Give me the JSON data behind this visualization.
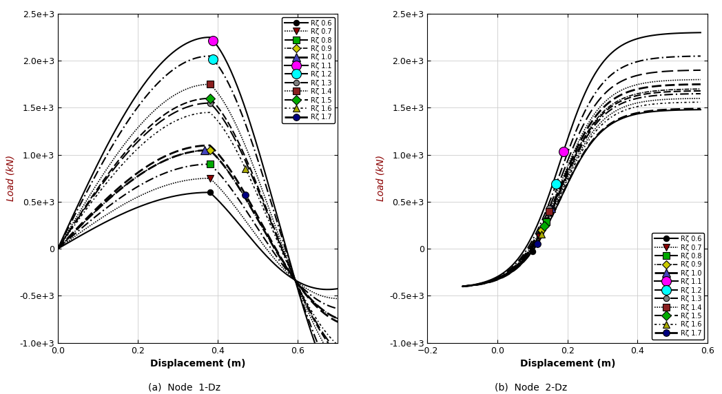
{
  "subplot_a_title": "(a)  Node  1-Dz",
  "subplot_b_title": "(b)  Node  2-Dz",
  "xlabel": "Displacement (m)",
  "ylabel": "Load (kN)",
  "ax_a": {
    "xlim": [
      0,
      0.7
    ],
    "ylim": [
      -1000,
      2500
    ],
    "xticks": [
      0,
      0.2,
      0.4,
      0.6
    ],
    "yticks": [
      -1000,
      -500,
      0,
      500,
      1000,
      1500,
      2000,
      2500
    ]
  },
  "ax_b": {
    "xlim": [
      -0.2,
      0.6
    ],
    "ylim": [
      -1000,
      2500
    ],
    "xticks": [
      -0.2,
      0,
      0.2,
      0.4,
      0.6
    ],
    "yticks": [
      -1000,
      -500,
      0,
      500,
      1000,
      1500,
      2000,
      2500
    ]
  },
  "rz_values": [
    0.6,
    0.7,
    0.8,
    0.9,
    1.0,
    1.1,
    1.2,
    1.3,
    1.4,
    1.5,
    1.6,
    1.7
  ],
  "peaks_a": [
    600,
    750,
    900,
    1050,
    1050,
    2250,
    2050,
    1550,
    1750,
    1600,
    1450,
    1100
  ],
  "peaks_b": [
    1480,
    1600,
    1650,
    1700,
    1750,
    2300,
    2050,
    1900,
    1800,
    1680,
    1560,
    1490
  ],
  "markers": [
    "o",
    "v",
    "s",
    "D",
    "^",
    "o",
    "o",
    "o",
    "s",
    "D",
    "^",
    "o"
  ],
  "marker_colors": [
    "black",
    "#8B0000",
    "#00AA00",
    "#CCCC00",
    "#4444BB",
    "magenta",
    "cyan",
    "gray",
    "#8B2020",
    "#00AA00",
    "#AAAA00",
    "#000080"
  ],
  "marker_sizes": [
    6,
    7,
    7,
    6,
    8,
    10,
    10,
    6,
    7,
    7,
    7,
    7
  ],
  "linestyles": [
    "solid",
    "dotted",
    "dashdot_custom",
    "dotted_custom",
    "dashed",
    "solid",
    "dashdot_custom2",
    "longdash",
    "dotted",
    "dashed",
    "dotdot",
    "dashed_heavy"
  ],
  "linewidths": [
    1.5,
    1.5,
    1.5,
    1.5,
    2.0,
    1.5,
    1.5,
    1.2,
    1.5,
    1.5,
    1.2,
    2.0
  ],
  "grid_color": "#CCCCCC",
  "marker_x_a": [
    0.38,
    0.38,
    0.38,
    0.38,
    0.37,
    0.39,
    0.39,
    0.38,
    0.38,
    0.38,
    0.47,
    0.47
  ],
  "marker_x_b": [
    0.1,
    0.12,
    0.14,
    0.13,
    0.155,
    0.19,
    0.17,
    0.15,
    0.145,
    0.135,
    0.125,
    0.115
  ]
}
